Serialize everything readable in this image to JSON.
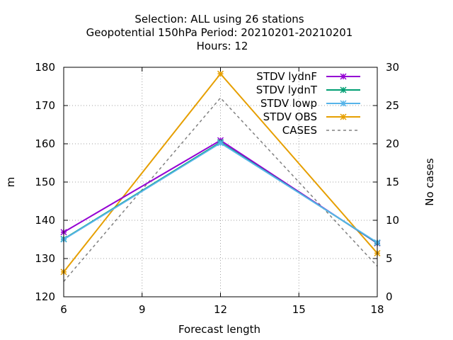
{
  "chart_data": {
    "type": "line",
    "title_lines": [
      "Selection: ALL using    26 stations",
      "Geopotential 150hPa   Period: 20210201-20210201",
      "Hours:  12"
    ],
    "xlabel": "Forecast length",
    "ylabel": "m",
    "y2label": "No cases",
    "x": [
      6,
      12,
      18
    ],
    "xlim": [
      6,
      18
    ],
    "ylim": [
      120,
      180
    ],
    "y2lim": [
      0,
      30
    ],
    "xticks": [
      6,
      9,
      12,
      15,
      18
    ],
    "yticks": [
      120,
      130,
      140,
      150,
      160,
      170,
      180
    ],
    "y2ticks": [
      0,
      5,
      10,
      15,
      20,
      25,
      30
    ],
    "grid": true,
    "legend_position": "top-right",
    "series": [
      {
        "name": "STDV lydnF",
        "values": [
          136.9,
          160.9,
          134.0
        ],
        "color": "#9400d3",
        "axis": "y1",
        "dash": "solid",
        "marker": "x"
      },
      {
        "name": "STDV lydnT",
        "values": [
          135.1,
          160.4,
          134.1
        ],
        "color": "#009e73",
        "axis": "y1",
        "dash": "solid",
        "marker": "x"
      },
      {
        "name": "STDV lowp",
        "values": [
          135.0,
          160.2,
          134.2
        ],
        "color": "#56b4e9",
        "axis": "y1",
        "dash": "solid",
        "marker": "x"
      },
      {
        "name": "STDV OBS",
        "values": [
          126.5,
          178.3,
          131.4
        ],
        "color": "#e69f00",
        "axis": "y1",
        "dash": "solid",
        "marker": "x"
      },
      {
        "name": "CASES",
        "values": [
          2,
          26,
          4
        ],
        "color": "#808080",
        "axis": "y2",
        "dash": "dashed",
        "marker": "none"
      }
    ]
  }
}
